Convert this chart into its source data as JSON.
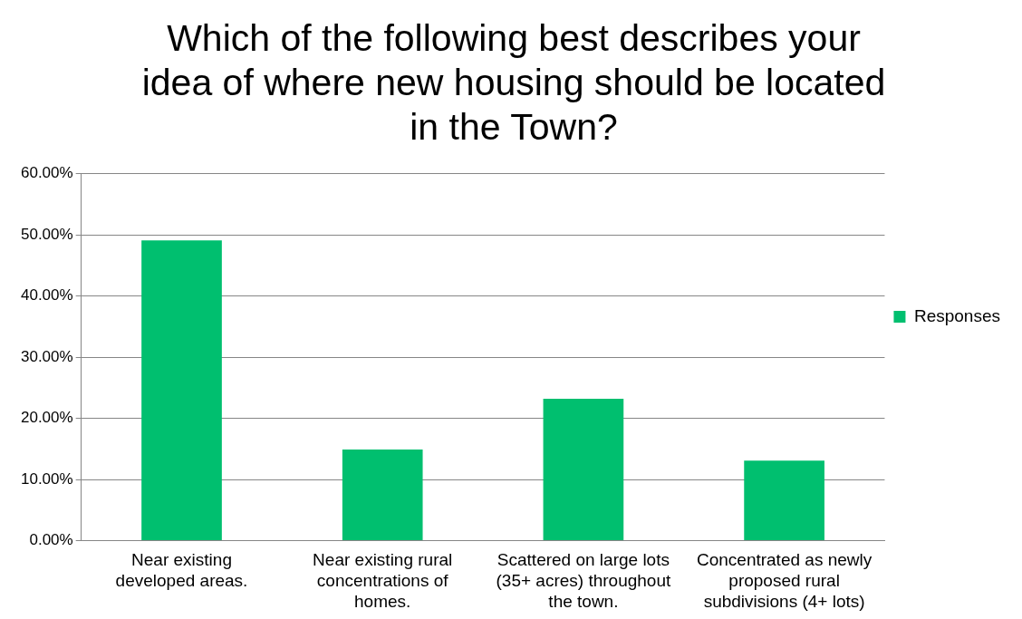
{
  "chart_data": {
    "type": "bar",
    "title": "Which of the following best describes your idea of where new housing should be located in the Town?",
    "categories": [
      "Near existing developed areas.",
      "Near existing rural concentrations of homes.",
      "Scattered on large lots (35+ acres) throughout the town.",
      "Concentrated as newly proposed rural subdivisions (4+ lots)"
    ],
    "series": [
      {
        "name": "Responses",
        "color": "#00bf6f",
        "values": [
          49.1,
          14.9,
          23.2,
          13.1
        ]
      }
    ],
    "ylim": [
      0,
      60
    ],
    "yticks": [
      {
        "value": 0,
        "label": "0.00%"
      },
      {
        "value": 10,
        "label": "10.00%"
      },
      {
        "value": 20,
        "label": "20.00%"
      },
      {
        "value": 30,
        "label": "30.00%"
      },
      {
        "value": 40,
        "label": "40.00%"
      },
      {
        "value": 50,
        "label": "50.00%"
      },
      {
        "value": 60,
        "label": "60.00%"
      }
    ],
    "grid": "y",
    "legend": "right"
  }
}
